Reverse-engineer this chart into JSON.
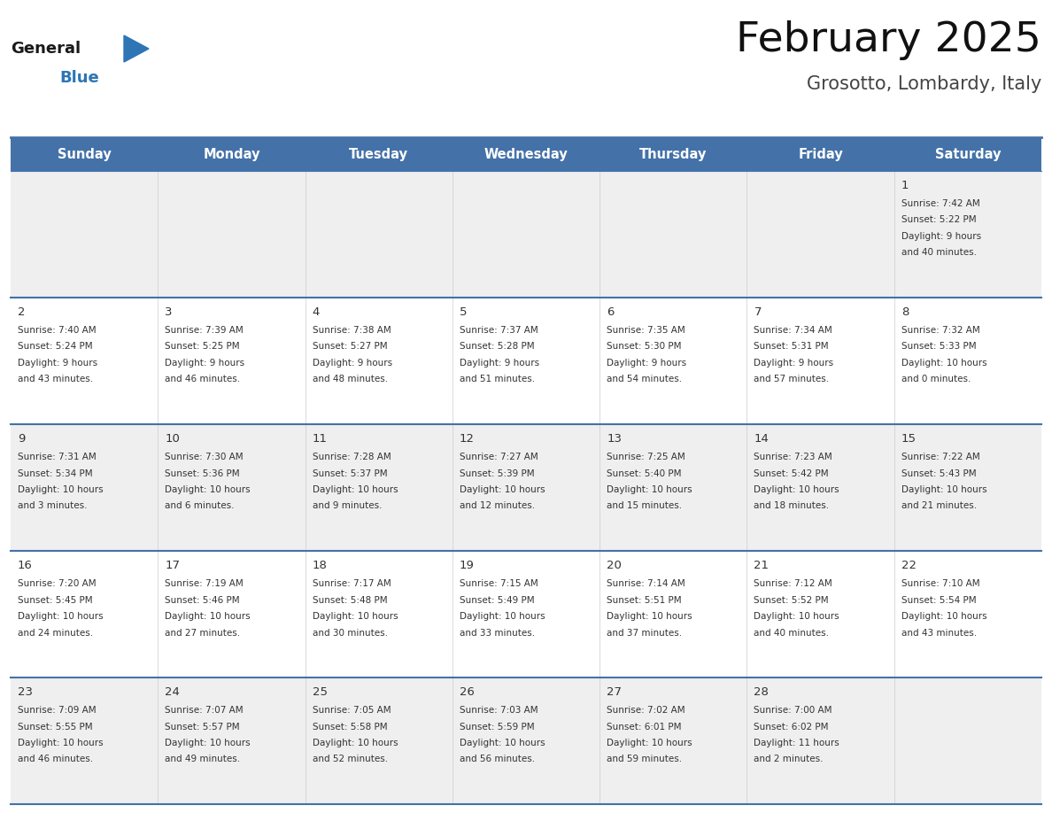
{
  "title": "February 2025",
  "subtitle": "Grosotto, Lombardy, Italy",
  "header_bg": "#4472a8",
  "header_text_color": "#ffffff",
  "header_font_size": 10.5,
  "day_names": [
    "Sunday",
    "Monday",
    "Tuesday",
    "Wednesday",
    "Thursday",
    "Friday",
    "Saturday"
  ],
  "title_font_size": 34,
  "subtitle_font_size": 15,
  "cell_bg_odd": "#efefef",
  "cell_bg_even": "#ffffff",
  "cell_text_color": "#333333",
  "number_color": "#333333",
  "number_font_size": 9.5,
  "info_font_size": 7.5,
  "line_color": "#4472a8",
  "logo_general_color": "#1a1a1a",
  "logo_blue_color": "#2e75b6",
  "days": [
    {
      "day": 1,
      "row": 0,
      "col": 6,
      "sunrise": "7:42 AM",
      "sunset": "5:22 PM",
      "daylight": "9 hours and 40 minutes"
    },
    {
      "day": 2,
      "row": 1,
      "col": 0,
      "sunrise": "7:40 AM",
      "sunset": "5:24 PM",
      "daylight": "9 hours and 43 minutes"
    },
    {
      "day": 3,
      "row": 1,
      "col": 1,
      "sunrise": "7:39 AM",
      "sunset": "5:25 PM",
      "daylight": "9 hours and 46 minutes"
    },
    {
      "day": 4,
      "row": 1,
      "col": 2,
      "sunrise": "7:38 AM",
      "sunset": "5:27 PM",
      "daylight": "9 hours and 48 minutes"
    },
    {
      "day": 5,
      "row": 1,
      "col": 3,
      "sunrise": "7:37 AM",
      "sunset": "5:28 PM",
      "daylight": "9 hours and 51 minutes"
    },
    {
      "day": 6,
      "row": 1,
      "col": 4,
      "sunrise": "7:35 AM",
      "sunset": "5:30 PM",
      "daylight": "9 hours and 54 minutes"
    },
    {
      "day": 7,
      "row": 1,
      "col": 5,
      "sunrise": "7:34 AM",
      "sunset": "5:31 PM",
      "daylight": "9 hours and 57 minutes"
    },
    {
      "day": 8,
      "row": 1,
      "col": 6,
      "sunrise": "7:32 AM",
      "sunset": "5:33 PM",
      "daylight": "10 hours and 0 minutes"
    },
    {
      "day": 9,
      "row": 2,
      "col": 0,
      "sunrise": "7:31 AM",
      "sunset": "5:34 PM",
      "daylight": "10 hours and 3 minutes"
    },
    {
      "day": 10,
      "row": 2,
      "col": 1,
      "sunrise": "7:30 AM",
      "sunset": "5:36 PM",
      "daylight": "10 hours and 6 minutes"
    },
    {
      "day": 11,
      "row": 2,
      "col": 2,
      "sunrise": "7:28 AM",
      "sunset": "5:37 PM",
      "daylight": "10 hours and 9 minutes"
    },
    {
      "day": 12,
      "row": 2,
      "col": 3,
      "sunrise": "7:27 AM",
      "sunset": "5:39 PM",
      "daylight": "10 hours and 12 minutes"
    },
    {
      "day": 13,
      "row": 2,
      "col": 4,
      "sunrise": "7:25 AM",
      "sunset": "5:40 PM",
      "daylight": "10 hours and 15 minutes"
    },
    {
      "day": 14,
      "row": 2,
      "col": 5,
      "sunrise": "7:23 AM",
      "sunset": "5:42 PM",
      "daylight": "10 hours and 18 minutes"
    },
    {
      "day": 15,
      "row": 2,
      "col": 6,
      "sunrise": "7:22 AM",
      "sunset": "5:43 PM",
      "daylight": "10 hours and 21 minutes"
    },
    {
      "day": 16,
      "row": 3,
      "col": 0,
      "sunrise": "7:20 AM",
      "sunset": "5:45 PM",
      "daylight": "10 hours and 24 minutes"
    },
    {
      "day": 17,
      "row": 3,
      "col": 1,
      "sunrise": "7:19 AM",
      "sunset": "5:46 PM",
      "daylight": "10 hours and 27 minutes"
    },
    {
      "day": 18,
      "row": 3,
      "col": 2,
      "sunrise": "7:17 AM",
      "sunset": "5:48 PM",
      "daylight": "10 hours and 30 minutes"
    },
    {
      "day": 19,
      "row": 3,
      "col": 3,
      "sunrise": "7:15 AM",
      "sunset": "5:49 PM",
      "daylight": "10 hours and 33 minutes"
    },
    {
      "day": 20,
      "row": 3,
      "col": 4,
      "sunrise": "7:14 AM",
      "sunset": "5:51 PM",
      "daylight": "10 hours and 37 minutes"
    },
    {
      "day": 21,
      "row": 3,
      "col": 5,
      "sunrise": "7:12 AM",
      "sunset": "5:52 PM",
      "daylight": "10 hours and 40 minutes"
    },
    {
      "day": 22,
      "row": 3,
      "col": 6,
      "sunrise": "7:10 AM",
      "sunset": "5:54 PM",
      "daylight": "10 hours and 43 minutes"
    },
    {
      "day": 23,
      "row": 4,
      "col": 0,
      "sunrise": "7:09 AM",
      "sunset": "5:55 PM",
      "daylight": "10 hours and 46 minutes"
    },
    {
      "day": 24,
      "row": 4,
      "col": 1,
      "sunrise": "7:07 AM",
      "sunset": "5:57 PM",
      "daylight": "10 hours and 49 minutes"
    },
    {
      "day": 25,
      "row": 4,
      "col": 2,
      "sunrise": "7:05 AM",
      "sunset": "5:58 PM",
      "daylight": "10 hours and 52 minutes"
    },
    {
      "day": 26,
      "row": 4,
      "col": 3,
      "sunrise": "7:03 AM",
      "sunset": "5:59 PM",
      "daylight": "10 hours and 56 minutes"
    },
    {
      "day": 27,
      "row": 4,
      "col": 4,
      "sunrise": "7:02 AM",
      "sunset": "6:01 PM",
      "daylight": "10 hours and 59 minutes"
    },
    {
      "day": 28,
      "row": 4,
      "col": 5,
      "sunrise": "7:00 AM",
      "sunset": "6:02 PM",
      "daylight": "11 hours and 2 minutes"
    }
  ]
}
